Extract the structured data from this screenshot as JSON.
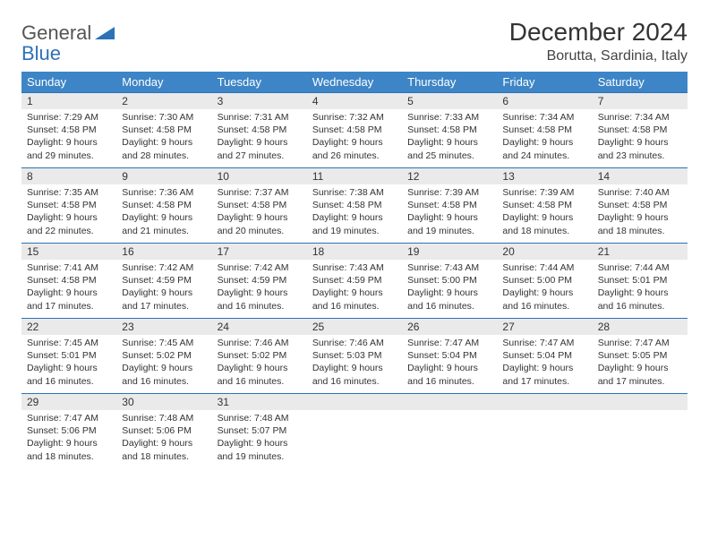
{
  "logo": {
    "text1": "General",
    "text2": "Blue"
  },
  "title": "December 2024",
  "location": "Borutta, Sardinia, Italy",
  "header_color": "#3d85c6",
  "border_color": "#2d72b8",
  "daynum_bg": "#eaeaea",
  "weekdays": [
    "Sunday",
    "Monday",
    "Tuesday",
    "Wednesday",
    "Thursday",
    "Friday",
    "Saturday"
  ],
  "weeks": [
    [
      {
        "n": "1",
        "sr": "Sunrise: 7:29 AM",
        "ss": "Sunset: 4:58 PM",
        "d1": "Daylight: 9 hours",
        "d2": "and 29 minutes."
      },
      {
        "n": "2",
        "sr": "Sunrise: 7:30 AM",
        "ss": "Sunset: 4:58 PM",
        "d1": "Daylight: 9 hours",
        "d2": "and 28 minutes."
      },
      {
        "n": "3",
        "sr": "Sunrise: 7:31 AM",
        "ss": "Sunset: 4:58 PM",
        "d1": "Daylight: 9 hours",
        "d2": "and 27 minutes."
      },
      {
        "n": "4",
        "sr": "Sunrise: 7:32 AM",
        "ss": "Sunset: 4:58 PM",
        "d1": "Daylight: 9 hours",
        "d2": "and 26 minutes."
      },
      {
        "n": "5",
        "sr": "Sunrise: 7:33 AM",
        "ss": "Sunset: 4:58 PM",
        "d1": "Daylight: 9 hours",
        "d2": "and 25 minutes."
      },
      {
        "n": "6",
        "sr": "Sunrise: 7:34 AM",
        "ss": "Sunset: 4:58 PM",
        "d1": "Daylight: 9 hours",
        "d2": "and 24 minutes."
      },
      {
        "n": "7",
        "sr": "Sunrise: 7:34 AM",
        "ss": "Sunset: 4:58 PM",
        "d1": "Daylight: 9 hours",
        "d2": "and 23 minutes."
      }
    ],
    [
      {
        "n": "8",
        "sr": "Sunrise: 7:35 AM",
        "ss": "Sunset: 4:58 PM",
        "d1": "Daylight: 9 hours",
        "d2": "and 22 minutes."
      },
      {
        "n": "9",
        "sr": "Sunrise: 7:36 AM",
        "ss": "Sunset: 4:58 PM",
        "d1": "Daylight: 9 hours",
        "d2": "and 21 minutes."
      },
      {
        "n": "10",
        "sr": "Sunrise: 7:37 AM",
        "ss": "Sunset: 4:58 PM",
        "d1": "Daylight: 9 hours",
        "d2": "and 20 minutes."
      },
      {
        "n": "11",
        "sr": "Sunrise: 7:38 AM",
        "ss": "Sunset: 4:58 PM",
        "d1": "Daylight: 9 hours",
        "d2": "and 19 minutes."
      },
      {
        "n": "12",
        "sr": "Sunrise: 7:39 AM",
        "ss": "Sunset: 4:58 PM",
        "d1": "Daylight: 9 hours",
        "d2": "and 19 minutes."
      },
      {
        "n": "13",
        "sr": "Sunrise: 7:39 AM",
        "ss": "Sunset: 4:58 PM",
        "d1": "Daylight: 9 hours",
        "d2": "and 18 minutes."
      },
      {
        "n": "14",
        "sr": "Sunrise: 7:40 AM",
        "ss": "Sunset: 4:58 PM",
        "d1": "Daylight: 9 hours",
        "d2": "and 18 minutes."
      }
    ],
    [
      {
        "n": "15",
        "sr": "Sunrise: 7:41 AM",
        "ss": "Sunset: 4:58 PM",
        "d1": "Daylight: 9 hours",
        "d2": "and 17 minutes."
      },
      {
        "n": "16",
        "sr": "Sunrise: 7:42 AM",
        "ss": "Sunset: 4:59 PM",
        "d1": "Daylight: 9 hours",
        "d2": "and 17 minutes."
      },
      {
        "n": "17",
        "sr": "Sunrise: 7:42 AM",
        "ss": "Sunset: 4:59 PM",
        "d1": "Daylight: 9 hours",
        "d2": "and 16 minutes."
      },
      {
        "n": "18",
        "sr": "Sunrise: 7:43 AM",
        "ss": "Sunset: 4:59 PM",
        "d1": "Daylight: 9 hours",
        "d2": "and 16 minutes."
      },
      {
        "n": "19",
        "sr": "Sunrise: 7:43 AM",
        "ss": "Sunset: 5:00 PM",
        "d1": "Daylight: 9 hours",
        "d2": "and 16 minutes."
      },
      {
        "n": "20",
        "sr": "Sunrise: 7:44 AM",
        "ss": "Sunset: 5:00 PM",
        "d1": "Daylight: 9 hours",
        "d2": "and 16 minutes."
      },
      {
        "n": "21",
        "sr": "Sunrise: 7:44 AM",
        "ss": "Sunset: 5:01 PM",
        "d1": "Daylight: 9 hours",
        "d2": "and 16 minutes."
      }
    ],
    [
      {
        "n": "22",
        "sr": "Sunrise: 7:45 AM",
        "ss": "Sunset: 5:01 PM",
        "d1": "Daylight: 9 hours",
        "d2": "and 16 minutes."
      },
      {
        "n": "23",
        "sr": "Sunrise: 7:45 AM",
        "ss": "Sunset: 5:02 PM",
        "d1": "Daylight: 9 hours",
        "d2": "and 16 minutes."
      },
      {
        "n": "24",
        "sr": "Sunrise: 7:46 AM",
        "ss": "Sunset: 5:02 PM",
        "d1": "Daylight: 9 hours",
        "d2": "and 16 minutes."
      },
      {
        "n": "25",
        "sr": "Sunrise: 7:46 AM",
        "ss": "Sunset: 5:03 PM",
        "d1": "Daylight: 9 hours",
        "d2": "and 16 minutes."
      },
      {
        "n": "26",
        "sr": "Sunrise: 7:47 AM",
        "ss": "Sunset: 5:04 PM",
        "d1": "Daylight: 9 hours",
        "d2": "and 16 minutes."
      },
      {
        "n": "27",
        "sr": "Sunrise: 7:47 AM",
        "ss": "Sunset: 5:04 PM",
        "d1": "Daylight: 9 hours",
        "d2": "and 17 minutes."
      },
      {
        "n": "28",
        "sr": "Sunrise: 7:47 AM",
        "ss": "Sunset: 5:05 PM",
        "d1": "Daylight: 9 hours",
        "d2": "and 17 minutes."
      }
    ],
    [
      {
        "n": "29",
        "sr": "Sunrise: 7:47 AM",
        "ss": "Sunset: 5:06 PM",
        "d1": "Daylight: 9 hours",
        "d2": "and 18 minutes."
      },
      {
        "n": "30",
        "sr": "Sunrise: 7:48 AM",
        "ss": "Sunset: 5:06 PM",
        "d1": "Daylight: 9 hours",
        "d2": "and 18 minutes."
      },
      {
        "n": "31",
        "sr": "Sunrise: 7:48 AM",
        "ss": "Sunset: 5:07 PM",
        "d1": "Daylight: 9 hours",
        "d2": "and 19 minutes."
      },
      {
        "n": "",
        "sr": "",
        "ss": "",
        "d1": "",
        "d2": ""
      },
      {
        "n": "",
        "sr": "",
        "ss": "",
        "d1": "",
        "d2": ""
      },
      {
        "n": "",
        "sr": "",
        "ss": "",
        "d1": "",
        "d2": ""
      },
      {
        "n": "",
        "sr": "",
        "ss": "",
        "d1": "",
        "d2": ""
      }
    ]
  ]
}
